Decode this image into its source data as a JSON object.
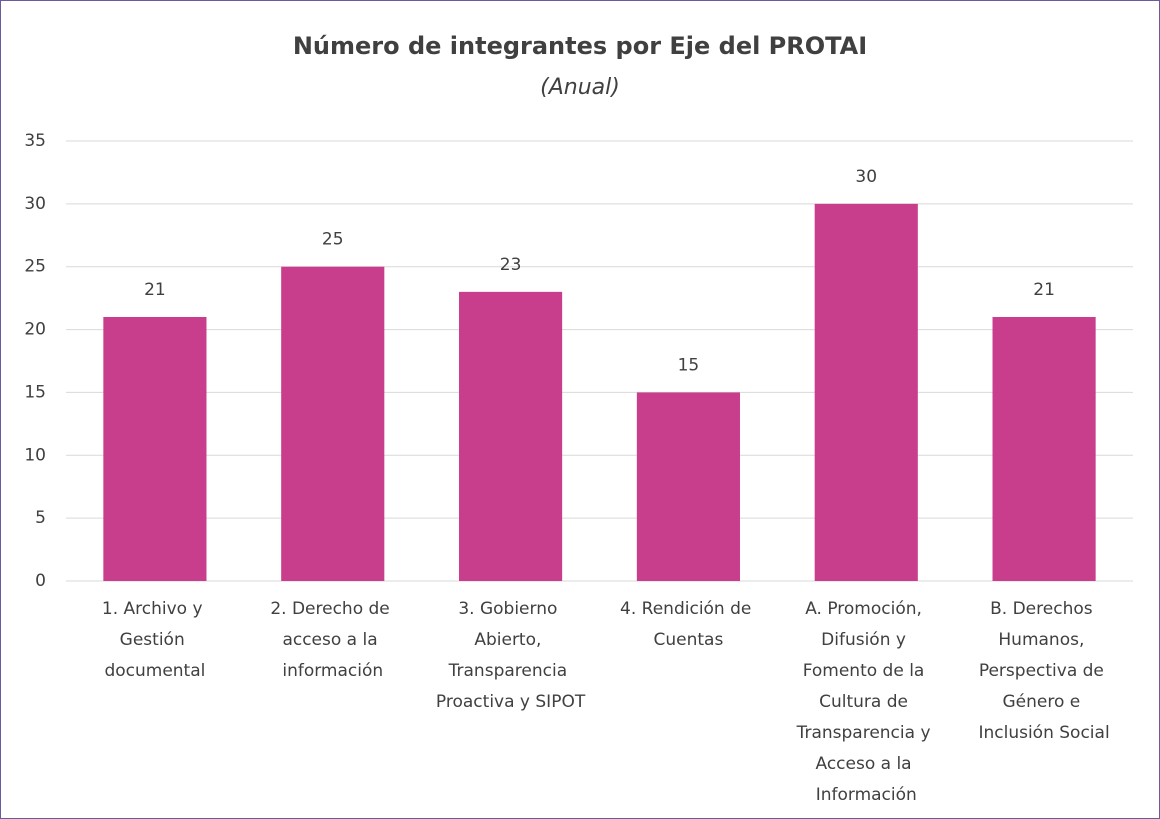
{
  "chart_data": {
    "type": "bar",
    "title": "Número de integrantes por Eje del PROTAI",
    "subtitle": "(Anual)",
    "categories": [
      "1. Archivo y Gestión documental",
      "2. Derecho de acceso a la información",
      "3. Gobierno Abierto, Transparencia Proactiva y SIPOT",
      "4. Rendición de Cuentas",
      "A. Promoción, Difusión y Fomento de la Cultura de Transparencia y Acceso a la Información",
      "B. Derechos Humanos, Perspectiva de Género e Inclusión Social"
    ],
    "values": [
      21,
      25,
      23,
      15,
      30,
      21
    ],
    "color": "#c93d8d",
    "ylim": [
      0,
      35
    ],
    "yticks": [
      0,
      5,
      10,
      15,
      20,
      25,
      30,
      35
    ],
    "grid": true
  }
}
